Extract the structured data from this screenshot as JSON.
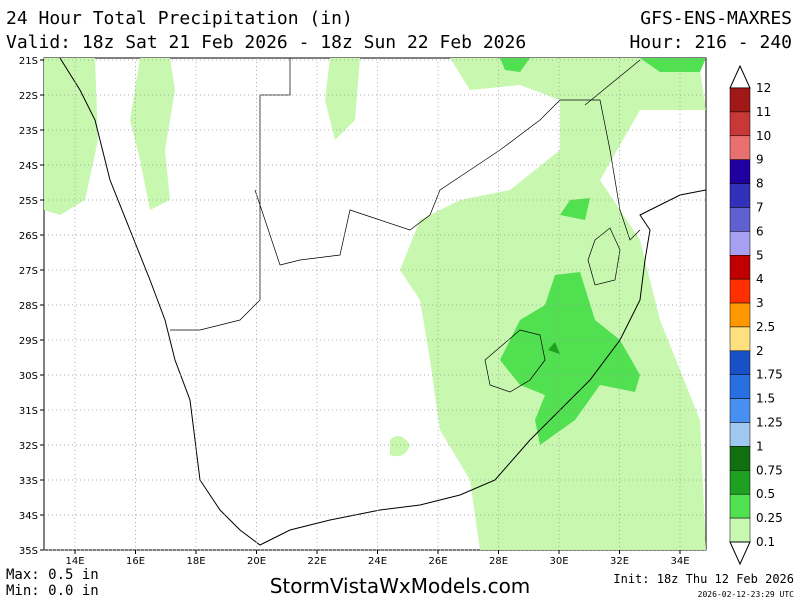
{
  "header": {
    "title": "24 Hour Total Precipitation (in)",
    "valid": "Valid: 18z Sat 21 Feb 2026 - 18z Sun 22 Feb 2026",
    "model": "GFS-ENS-MAXRES",
    "hour": "Hour: 216 - 240"
  },
  "map": {
    "latitudes": [
      "21S",
      "22S",
      "23S",
      "24S",
      "25S",
      "26S",
      "27S",
      "28S",
      "29S",
      "30S",
      "31S",
      "32S",
      "33S",
      "34S",
      "35S"
    ],
    "longitudes": [
      "14E",
      "16E",
      "18E",
      "20E",
      "22E",
      "24E",
      "26E",
      "28E",
      "30E",
      "32E",
      "34E"
    ]
  },
  "colorbar": {
    "labels": [
      "12",
      "11",
      "10",
      "9",
      "8",
      "7",
      "6",
      "5",
      "4",
      "3",
      "2.5",
      "2",
      "1.75",
      "1.5",
      "1.25",
      "1",
      "0.75",
      "0.5",
      "0.25",
      "0.1"
    ],
    "colors": [
      "#a01818",
      "#c83838",
      "#e87070",
      "#2000a0",
      "#3030b8",
      "#6060d0",
      "#a8a0f0",
      "#c00000",
      "#ff3000",
      "#ff9800",
      "#ffe080",
      "#1850c8",
      "#2870e0",
      "#4890f0",
      "#a0c8f0",
      "#107010",
      "#20a020",
      "#50e050",
      "#c8f8b0"
    ]
  },
  "footer": {
    "max": "Max: 0.5 in",
    "min": "Min: 0.0 in",
    "site": "StormVistaWxModels.com",
    "init": "Init: 18z Thu 12 Feb 2026",
    "stamp": "2026-02-12-23:29 UTC"
  }
}
